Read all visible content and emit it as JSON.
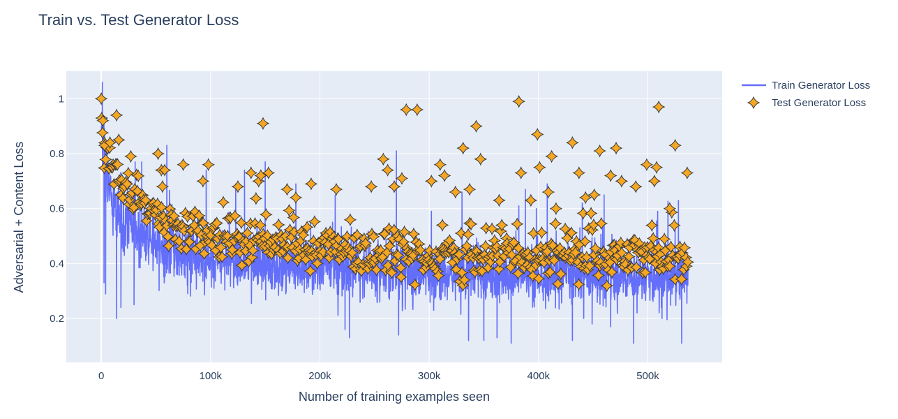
{
  "chart_data": {
    "type": "line+scatter",
    "title": "Train vs. Test Generator Loss",
    "xlabel": "Number of training examples seen",
    "ylabel": "Adversarial + Content Loss",
    "xlim": [
      -32000,
      568000
    ],
    "ylim": [
      0.04,
      1.1
    ],
    "x_ticks": [
      0,
      100000,
      200000,
      300000,
      400000,
      500000
    ],
    "x_tick_labels": [
      "0",
      "100k",
      "200k",
      "300k",
      "400k",
      "500k"
    ],
    "y_ticks": [
      0.2,
      0.4,
      0.6,
      0.8,
      1
    ],
    "y_tick_labels": [
      "0.2",
      "0.4",
      "0.6",
      "0.8",
      "1"
    ],
    "grid": true,
    "legend_position": "top-right",
    "colors": {
      "plot_bg": "#e5ecf6",
      "train": "#636efa",
      "test_fill": "#f5a623",
      "test_edge": "#3a3a3a",
      "text": "#2a3f5f"
    },
    "series": [
      {
        "name": "Train Generator Loss",
        "mode": "line",
        "x_range": [
          0,
          537000
        ],
        "trend": [
          [
            0,
            0.92
          ],
          [
            2000,
            0.88
          ],
          [
            5000,
            0.72
          ],
          [
            10000,
            0.62
          ],
          [
            20000,
            0.56
          ],
          [
            40000,
            0.49
          ],
          [
            60000,
            0.45
          ],
          [
            80000,
            0.42
          ],
          [
            100000,
            0.41
          ],
          [
            150000,
            0.39
          ],
          [
            200000,
            0.38
          ],
          [
            300000,
            0.36
          ],
          [
            400000,
            0.355
          ],
          [
            537000,
            0.35
          ]
        ],
        "outliers": [
          [
            1000,
            1.06
          ],
          [
            2500,
            0.33
          ],
          [
            4000,
            0.29
          ],
          [
            14000,
            0.2
          ],
          [
            18000,
            0.24
          ],
          [
            30000,
            0.25
          ],
          [
            31000,
            0.77
          ],
          [
            37000,
            0.77
          ],
          [
            48000,
            0.62
          ],
          [
            60000,
            0.83
          ],
          [
            96000,
            0.74
          ],
          [
            123000,
            0.69
          ],
          [
            131000,
            0.74
          ],
          [
            150000,
            0.77
          ],
          [
            178000,
            0.69
          ],
          [
            214000,
            0.65
          ],
          [
            223000,
            0.16
          ],
          [
            227000,
            0.13
          ],
          [
            270000,
            0.81
          ],
          [
            272000,
            0.14
          ],
          [
            302000,
            0.59
          ],
          [
            330000,
            0.66
          ],
          [
            336000,
            0.12
          ],
          [
            350000,
            0.12
          ],
          [
            362000,
            0.13
          ],
          [
            375000,
            0.11
          ],
          [
            382000,
            0.61
          ],
          [
            388000,
            0.67
          ],
          [
            398000,
            0.6
          ],
          [
            408000,
            0.69
          ],
          [
            431000,
            0.12
          ],
          [
            440000,
            0.62
          ],
          [
            449000,
            0.18
          ],
          [
            460000,
            0.65
          ],
          [
            466000,
            0.17
          ],
          [
            487000,
            0.11
          ],
          [
            509000,
            0.59
          ],
          [
            513000,
            0.2
          ],
          [
            525000,
            0.53
          ],
          [
            528000,
            0.63
          ],
          [
            531000,
            0.11
          ]
        ]
      },
      {
        "name": "Test Generator Loss",
        "mode": "markers",
        "marker": "star-diamond",
        "x_range": [
          0,
          537000
        ],
        "trend": [
          [
            0,
            0.86
          ],
          [
            5000,
            0.77
          ],
          [
            10000,
            0.74
          ],
          [
            20000,
            0.68
          ],
          [
            40000,
            0.6
          ],
          [
            60000,
            0.54
          ],
          [
            80000,
            0.51
          ],
          [
            100000,
            0.49
          ],
          [
            150000,
            0.47
          ],
          [
            200000,
            0.45
          ],
          [
            300000,
            0.43
          ],
          [
            400000,
            0.42
          ],
          [
            537000,
            0.41
          ]
        ],
        "highlights": [
          [
            0,
            1.0
          ],
          [
            1500,
            0.92
          ],
          [
            3000,
            0.83
          ],
          [
            8000,
            0.84
          ],
          [
            14000,
            0.94
          ],
          [
            16000,
            0.85
          ],
          [
            27000,
            0.79
          ],
          [
            52000,
            0.8
          ],
          [
            55000,
            0.74
          ],
          [
            58000,
            0.74
          ],
          [
            75000,
            0.76
          ],
          [
            93000,
            0.7
          ],
          [
            98000,
            0.76
          ],
          [
            125000,
            0.68
          ],
          [
            137000,
            0.73
          ],
          [
            144000,
            0.7
          ],
          [
            146000,
            0.72
          ],
          [
            148000,
            0.91
          ],
          [
            153000,
            0.73
          ],
          [
            170000,
            0.67
          ],
          [
            178000,
            0.64
          ],
          [
            192000,
            0.69
          ],
          [
            215000,
            0.67
          ],
          [
            247000,
            0.68
          ],
          [
            258000,
            0.78
          ],
          [
            262000,
            0.74
          ],
          [
            268000,
            0.68
          ],
          [
            275000,
            0.71
          ],
          [
            279000,
            0.96
          ],
          [
            289000,
            0.96
          ],
          [
            302000,
            0.7
          ],
          [
            310000,
            0.76
          ],
          [
            314000,
            0.72
          ],
          [
            324000,
            0.66
          ],
          [
            331000,
            0.82
          ],
          [
            337000,
            0.67
          ],
          [
            343000,
            0.9
          ],
          [
            347000,
            0.78
          ],
          [
            364000,
            0.63
          ],
          [
            382000,
            0.99
          ],
          [
            384000,
            0.73
          ],
          [
            393000,
            0.63
          ],
          [
            399000,
            0.87
          ],
          [
            401000,
            0.75
          ],
          [
            409000,
            0.66
          ],
          [
            412000,
            0.79
          ],
          [
            416000,
            0.6
          ],
          [
            431000,
            0.84
          ],
          [
            437000,
            0.73
          ],
          [
            443000,
            0.64
          ],
          [
            451000,
            0.65
          ],
          [
            456000,
            0.81
          ],
          [
            466000,
            0.72
          ],
          [
            471000,
            0.82
          ],
          [
            476000,
            0.7
          ],
          [
            489000,
            0.68
          ],
          [
            499000,
            0.76
          ],
          [
            506000,
            0.7
          ],
          [
            508000,
            0.75
          ],
          [
            510000,
            0.97
          ],
          [
            520000,
            0.6
          ],
          [
            525000,
            0.83
          ],
          [
            536000,
            0.73
          ]
        ]
      }
    ]
  }
}
